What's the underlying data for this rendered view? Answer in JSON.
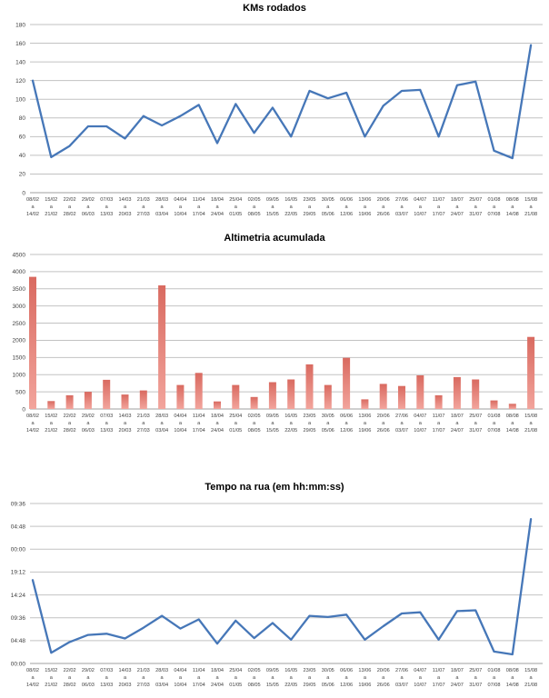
{
  "page_background": "#ffffff",
  "week_separator": "a",
  "weeks": [
    {
      "start": "08/02",
      "end": "14/02"
    },
    {
      "start": "15/02",
      "end": "21/02"
    },
    {
      "start": "22/02",
      "end": "28/02"
    },
    {
      "start": "29/02",
      "end": "06/03"
    },
    {
      "start": "07/03",
      "end": "13/03"
    },
    {
      "start": "14/03",
      "end": "20/03"
    },
    {
      "start": "21/03",
      "end": "27/03"
    },
    {
      "start": "28/03",
      "end": "03/04"
    },
    {
      "start": "04/04",
      "end": "10/04"
    },
    {
      "start": "11/04",
      "end": "17/04"
    },
    {
      "start": "18/04",
      "end": "24/04"
    },
    {
      "start": "25/04",
      "end": "01/05"
    },
    {
      "start": "02/05",
      "end": "08/05"
    },
    {
      "start": "09/05",
      "end": "15/05"
    },
    {
      "start": "16/05",
      "end": "22/05"
    },
    {
      "start": "23/05",
      "end": "29/05"
    },
    {
      "start": "30/05",
      "end": "05/06"
    },
    {
      "start": "06/06",
      "end": "12/06"
    },
    {
      "start": "13/06",
      "end": "19/06"
    },
    {
      "start": "20/06",
      "end": "26/06"
    },
    {
      "start": "27/06",
      "end": "03/07"
    },
    {
      "start": "04/07",
      "end": "10/07"
    },
    {
      "start": "11/07",
      "end": "17/07"
    },
    {
      "start": "18/07",
      "end": "24/07"
    },
    {
      "start": "25/07",
      "end": "31/07"
    },
    {
      "start": "01/08",
      "end": "07/08"
    },
    {
      "start": "08/08",
      "end": "14/08"
    },
    {
      "start": "15/08",
      "end": "21/08"
    }
  ],
  "colors": {
    "line_blue": "#4677b8",
    "gridline": "#c2c2c2",
    "baseline": "#9f9f9f",
    "bar_top": "#d96a60",
    "bar_bottom": "#f2a49c",
    "tick_text": "#404040"
  },
  "chart_data": [
    {
      "type": "line",
      "title": "KMs rodados",
      "xlabel": "",
      "ylabel": "",
      "ylim": [
        0,
        180
      ],
      "y_step": 20,
      "grid": true,
      "legend": "none",
      "categories": "weeks (08/02 a 14/02 ... 15/08 a 21/08)",
      "values": [
        120,
        38,
        50,
        71,
        71,
        58,
        82,
        72,
        82,
        94,
        53,
        95,
        64,
        91,
        60,
        109,
        101,
        107,
        60,
        93,
        109,
        110,
        60,
        115,
        119,
        45,
        37,
        158
      ]
    },
    {
      "type": "bar",
      "title": "Altimetria acumulada",
      "xlabel": "",
      "ylabel": "",
      "ylim": [
        0,
        4500
      ],
      "y_step": 500,
      "grid": true,
      "legend": "none",
      "categories": "weeks (08/02 a 14/02 ... 15/08 a 21/08)",
      "values": [
        3850,
        230,
        400,
        500,
        850,
        420,
        540,
        3600,
        700,
        1050,
        220,
        700,
        350,
        780,
        860,
        1300,
        700,
        1490,
        280,
        730,
        670,
        980,
        400,
        930,
        860,
        250,
        150,
        2100
      ]
    },
    {
      "type": "line",
      "title": "Tempo na rua (em hh:mm:ss)",
      "xlabel": "",
      "ylabel": "",
      "ylim_minutes": [
        0,
        2016
      ],
      "y_step_minutes": 288,
      "y_tick_labels_bottom_to_top": [
        "00:00",
        "04:48",
        "09:36",
        "14:24",
        "19:12",
        "00:00",
        "04:48",
        "09:36"
      ],
      "grid": true,
      "legend": "none",
      "categories": "weeks (08/02 a 14/02 ... 15/08 a 21/08)",
      "values_hhmmss": [
        "17:30:00",
        "02:15:00",
        "04:30:00",
        "06:00:00",
        "06:15:00",
        "05:15:00",
        "07:30:00",
        "10:00:00",
        "07:20:00",
        "09:15:00",
        "04:10:00",
        "09:00:00",
        "05:20:00",
        "08:30:00",
        "05:00:00",
        "10:00:00",
        "09:45:00",
        "10:15:00",
        "05:00:00",
        "07:50:00",
        "10:30:00",
        "10:45:00",
        "05:00:00",
        "11:00:00",
        "11:10:00",
        "02:30:00",
        "01:55:00",
        "30:20:00"
      ],
      "values_minutes": [
        1050,
        135,
        270,
        360,
        375,
        315,
        450,
        600,
        440,
        555,
        250,
        540,
        320,
        510,
        300,
        600,
        585,
        615,
        300,
        470,
        630,
        645,
        300,
        660,
        670,
        150,
        115,
        1820
      ]
    }
  ]
}
